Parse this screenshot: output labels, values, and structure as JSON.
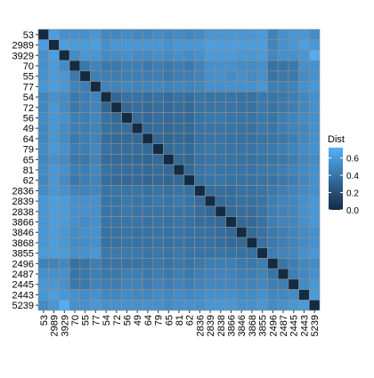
{
  "chart_data": {
    "type": "heatmap",
    "title": "",
    "xlabel": "",
    "ylabel": "",
    "labels": [
      "53",
      "2989",
      "3929",
      "70",
      "55",
      "77",
      "54",
      "72",
      "56",
      "49",
      "64",
      "79",
      "65",
      "81",
      "62",
      "2836",
      "2839",
      "2838",
      "3866",
      "3846",
      "3868",
      "3855",
      "2496",
      "2487",
      "2445",
      "2443",
      "5239"
    ],
    "values": [
      [
        0.0,
        0.62,
        0.55,
        0.55,
        0.55,
        0.58,
        0.5,
        0.5,
        0.52,
        0.5,
        0.5,
        0.52,
        0.5,
        0.52,
        0.5,
        0.52,
        0.58,
        0.58,
        0.58,
        0.58,
        0.58,
        0.6,
        0.47,
        0.55,
        0.58,
        0.58,
        0.52
      ],
      [
        0.62,
        0.0,
        0.62,
        0.6,
        0.6,
        0.62,
        0.55,
        0.58,
        0.58,
        0.58,
        0.58,
        0.58,
        0.55,
        0.58,
        0.58,
        0.58,
        0.62,
        0.62,
        0.62,
        0.62,
        0.62,
        0.62,
        0.48,
        0.55,
        0.58,
        0.62,
        0.58
      ],
      [
        0.55,
        0.62,
        0.0,
        0.52,
        0.58,
        0.58,
        0.52,
        0.52,
        0.55,
        0.52,
        0.52,
        0.55,
        0.52,
        0.55,
        0.52,
        0.55,
        0.6,
        0.6,
        0.6,
        0.58,
        0.58,
        0.6,
        0.5,
        0.55,
        0.55,
        0.58,
        0.7
      ],
      [
        0.55,
        0.6,
        0.52,
        0.0,
        0.42,
        0.48,
        0.42,
        0.42,
        0.45,
        0.45,
        0.42,
        0.45,
        0.42,
        0.45,
        0.42,
        0.48,
        0.55,
        0.55,
        0.55,
        0.52,
        0.52,
        0.55,
        0.38,
        0.4,
        0.42,
        0.55,
        0.55
      ],
      [
        0.55,
        0.6,
        0.58,
        0.42,
        0.0,
        0.45,
        0.45,
        0.45,
        0.45,
        0.45,
        0.45,
        0.45,
        0.42,
        0.45,
        0.45,
        0.48,
        0.55,
        0.55,
        0.52,
        0.55,
        0.52,
        0.55,
        0.4,
        0.42,
        0.42,
        0.52,
        0.55
      ],
      [
        0.58,
        0.62,
        0.58,
        0.48,
        0.45,
        0.0,
        0.48,
        0.48,
        0.5,
        0.48,
        0.48,
        0.5,
        0.48,
        0.5,
        0.48,
        0.5,
        0.55,
        0.55,
        0.55,
        0.55,
        0.55,
        0.58,
        0.45,
        0.45,
        0.48,
        0.55,
        0.58
      ],
      [
        0.5,
        0.55,
        0.52,
        0.42,
        0.45,
        0.48,
        0.0,
        0.32,
        0.38,
        0.38,
        0.36,
        0.38,
        0.35,
        0.38,
        0.36,
        0.4,
        0.4,
        0.4,
        0.4,
        0.38,
        0.38,
        0.42,
        0.4,
        0.42,
        0.45,
        0.5,
        0.55
      ],
      [
        0.5,
        0.58,
        0.52,
        0.42,
        0.45,
        0.48,
        0.32,
        0.0,
        0.34,
        0.36,
        0.34,
        0.36,
        0.34,
        0.36,
        0.34,
        0.4,
        0.4,
        0.4,
        0.4,
        0.38,
        0.38,
        0.42,
        0.4,
        0.42,
        0.45,
        0.5,
        0.55
      ],
      [
        0.52,
        0.58,
        0.55,
        0.45,
        0.45,
        0.5,
        0.38,
        0.34,
        0.0,
        0.36,
        0.34,
        0.36,
        0.34,
        0.36,
        0.34,
        0.4,
        0.42,
        0.42,
        0.4,
        0.4,
        0.4,
        0.42,
        0.4,
        0.45,
        0.48,
        0.52,
        0.55
      ],
      [
        0.5,
        0.58,
        0.52,
        0.45,
        0.45,
        0.48,
        0.38,
        0.36,
        0.36,
        0.0,
        0.34,
        0.36,
        0.34,
        0.36,
        0.34,
        0.4,
        0.4,
        0.4,
        0.4,
        0.38,
        0.38,
        0.42,
        0.4,
        0.45,
        0.48,
        0.5,
        0.55
      ],
      [
        0.5,
        0.58,
        0.52,
        0.42,
        0.45,
        0.48,
        0.36,
        0.34,
        0.34,
        0.34,
        0.0,
        0.34,
        0.32,
        0.34,
        0.32,
        0.38,
        0.4,
        0.4,
        0.38,
        0.38,
        0.38,
        0.4,
        0.4,
        0.42,
        0.45,
        0.5,
        0.55
      ],
      [
        0.52,
        0.58,
        0.55,
        0.45,
        0.45,
        0.5,
        0.38,
        0.36,
        0.36,
        0.36,
        0.34,
        0.0,
        0.34,
        0.36,
        0.34,
        0.4,
        0.42,
        0.4,
        0.4,
        0.4,
        0.4,
        0.42,
        0.42,
        0.45,
        0.48,
        0.52,
        0.55
      ],
      [
        0.5,
        0.55,
        0.52,
        0.42,
        0.42,
        0.48,
        0.35,
        0.34,
        0.34,
        0.34,
        0.32,
        0.34,
        0.0,
        0.34,
        0.32,
        0.38,
        0.4,
        0.4,
        0.38,
        0.38,
        0.38,
        0.4,
        0.4,
        0.42,
        0.45,
        0.5,
        0.52
      ],
      [
        0.52,
        0.58,
        0.55,
        0.45,
        0.45,
        0.5,
        0.38,
        0.36,
        0.36,
        0.36,
        0.34,
        0.36,
        0.34,
        0.0,
        0.34,
        0.4,
        0.42,
        0.4,
        0.4,
        0.4,
        0.4,
        0.42,
        0.42,
        0.45,
        0.48,
        0.52,
        0.55
      ],
      [
        0.5,
        0.58,
        0.52,
        0.42,
        0.45,
        0.48,
        0.36,
        0.34,
        0.34,
        0.34,
        0.32,
        0.34,
        0.32,
        0.34,
        0.0,
        0.38,
        0.4,
        0.4,
        0.38,
        0.38,
        0.38,
        0.4,
        0.4,
        0.42,
        0.45,
        0.5,
        0.55
      ],
      [
        0.52,
        0.58,
        0.55,
        0.48,
        0.48,
        0.5,
        0.4,
        0.4,
        0.4,
        0.4,
        0.38,
        0.4,
        0.38,
        0.4,
        0.38,
        0.0,
        0.36,
        0.36,
        0.36,
        0.38,
        0.38,
        0.4,
        0.42,
        0.45,
        0.48,
        0.52,
        0.55
      ],
      [
        0.58,
        0.62,
        0.6,
        0.55,
        0.55,
        0.55,
        0.4,
        0.4,
        0.42,
        0.4,
        0.4,
        0.42,
        0.4,
        0.42,
        0.4,
        0.36,
        0.0,
        0.34,
        0.36,
        0.38,
        0.38,
        0.4,
        0.45,
        0.48,
        0.5,
        0.55,
        0.58
      ],
      [
        0.58,
        0.62,
        0.6,
        0.55,
        0.55,
        0.55,
        0.4,
        0.4,
        0.42,
        0.4,
        0.4,
        0.4,
        0.4,
        0.4,
        0.4,
        0.36,
        0.34,
        0.0,
        0.34,
        0.36,
        0.36,
        0.4,
        0.45,
        0.48,
        0.5,
        0.55,
        0.58
      ],
      [
        0.58,
        0.62,
        0.6,
        0.55,
        0.52,
        0.55,
        0.4,
        0.4,
        0.4,
        0.4,
        0.38,
        0.4,
        0.38,
        0.4,
        0.38,
        0.36,
        0.36,
        0.34,
        0.0,
        0.34,
        0.34,
        0.38,
        0.45,
        0.48,
        0.5,
        0.55,
        0.58
      ],
      [
        0.58,
        0.62,
        0.58,
        0.52,
        0.55,
        0.55,
        0.38,
        0.38,
        0.4,
        0.38,
        0.38,
        0.4,
        0.38,
        0.4,
        0.38,
        0.38,
        0.38,
        0.36,
        0.34,
        0.0,
        0.34,
        0.38,
        0.42,
        0.45,
        0.48,
        0.52,
        0.55
      ],
      [
        0.58,
        0.62,
        0.58,
        0.52,
        0.52,
        0.55,
        0.38,
        0.38,
        0.4,
        0.38,
        0.38,
        0.4,
        0.38,
        0.4,
        0.38,
        0.38,
        0.38,
        0.36,
        0.34,
        0.34,
        0.0,
        0.38,
        0.42,
        0.45,
        0.48,
        0.52,
        0.55
      ],
      [
        0.6,
        0.62,
        0.6,
        0.55,
        0.55,
        0.58,
        0.42,
        0.42,
        0.42,
        0.42,
        0.4,
        0.42,
        0.4,
        0.42,
        0.4,
        0.4,
        0.4,
        0.4,
        0.38,
        0.38,
        0.38,
        0.0,
        0.45,
        0.48,
        0.5,
        0.55,
        0.58
      ],
      [
        0.47,
        0.48,
        0.5,
        0.38,
        0.4,
        0.45,
        0.4,
        0.4,
        0.4,
        0.4,
        0.4,
        0.42,
        0.4,
        0.42,
        0.4,
        0.42,
        0.45,
        0.45,
        0.45,
        0.42,
        0.42,
        0.45,
        0.0,
        0.4,
        0.45,
        0.5,
        0.52
      ],
      [
        0.55,
        0.55,
        0.55,
        0.4,
        0.42,
        0.45,
        0.42,
        0.42,
        0.45,
        0.45,
        0.42,
        0.45,
        0.42,
        0.45,
        0.42,
        0.45,
        0.48,
        0.48,
        0.48,
        0.45,
        0.45,
        0.48,
        0.4,
        0.0,
        0.45,
        0.5,
        0.55
      ],
      [
        0.58,
        0.58,
        0.55,
        0.42,
        0.42,
        0.48,
        0.45,
        0.45,
        0.48,
        0.48,
        0.45,
        0.48,
        0.45,
        0.48,
        0.45,
        0.48,
        0.5,
        0.5,
        0.5,
        0.48,
        0.48,
        0.5,
        0.45,
        0.45,
        0.0,
        0.52,
        0.58
      ],
      [
        0.58,
        0.62,
        0.58,
        0.55,
        0.52,
        0.55,
        0.5,
        0.5,
        0.52,
        0.5,
        0.5,
        0.52,
        0.5,
        0.52,
        0.5,
        0.52,
        0.55,
        0.55,
        0.55,
        0.52,
        0.52,
        0.55,
        0.5,
        0.5,
        0.52,
        0.0,
        0.6
      ],
      [
        0.52,
        0.58,
        0.7,
        0.55,
        0.55,
        0.58,
        0.55,
        0.55,
        0.55,
        0.55,
        0.55,
        0.55,
        0.52,
        0.55,
        0.55,
        0.55,
        0.58,
        0.58,
        0.58,
        0.55,
        0.55,
        0.58,
        0.52,
        0.55,
        0.58,
        0.6,
        0.0
      ]
    ],
    "color_scale": {
      "low_color": "#132B43",
      "high_color": "#56B1F7",
      "domain": [
        0,
        0.72
      ]
    },
    "cell_border_color": "#8f8f8f",
    "legend": {
      "title": "Dist",
      "breaks": [
        "0.0",
        "0.2",
        "0.4",
        "0.6"
      ],
      "break_values": [
        0,
        0.2,
        0.4,
        0.6
      ],
      "placement": "right"
    },
    "grid": false
  }
}
